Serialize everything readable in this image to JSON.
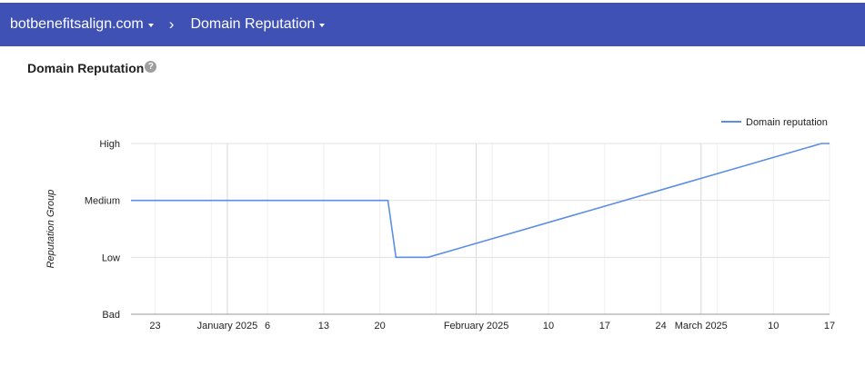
{
  "header": {
    "domain": "botbenefitsalign.com",
    "separator": "›",
    "section": "Domain Reputation"
  },
  "page": {
    "title": "Domain Reputation",
    "help_glyph": "?"
  },
  "chart_data": {
    "type": "line",
    "title": "",
    "xlabel": "",
    "ylabel": "Reputation Group",
    "y_categories": [
      "Bad",
      "Low",
      "Medium",
      "High"
    ],
    "x_tick_labels": [
      "23",
      "January 2025",
      "6",
      "13",
      "20",
      "February 2025",
      "10",
      "17",
      "24",
      "March 2025",
      "10",
      "17"
    ],
    "legend_position": "top-right",
    "grid": true,
    "series": [
      {
        "name": "Domain reputation",
        "color": "#5c8ee6",
        "points": [
          {
            "x": "2024-12-20",
            "y": "Medium"
          },
          {
            "x": "2025-01-21",
            "y": "Medium"
          },
          {
            "x": "2025-01-22",
            "y": "Low"
          },
          {
            "x": "2025-01-26",
            "y": "Low"
          },
          {
            "x": "2025-03-16",
            "y": "High"
          },
          {
            "x": "2025-03-17",
            "y": "High"
          }
        ]
      }
    ]
  }
}
